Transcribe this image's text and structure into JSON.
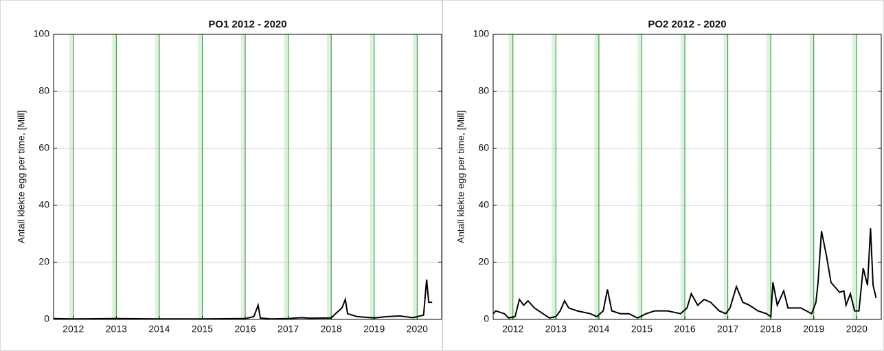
{
  "chart_data": [
    {
      "type": "line",
      "title": "PO1 2012 - 2020",
      "y_label": "Antall klekte egg per time, [Mill]",
      "xlim": [
        2011.54,
        2020.57
      ],
      "ylim": [
        0,
        100
      ],
      "xticks": [
        2012,
        2013,
        2014,
        2015,
        2016,
        2017,
        2018,
        2019,
        2020
      ],
      "yticks": [
        0,
        20,
        40,
        60,
        80,
        100
      ],
      "grid": true,
      "color": "#000000",
      "band_color": "#d9f5d9",
      "shaded_bands": [
        [
          2011.9,
          2012
        ],
        [
          2012.9,
          2013
        ],
        [
          2013.9,
          2014
        ],
        [
          2014.9,
          2015
        ],
        [
          2015.9,
          2016
        ],
        [
          2016.9,
          2017
        ],
        [
          2017.9,
          2018
        ],
        [
          2018.9,
          2019
        ],
        [
          2019.9,
          2020
        ]
      ],
      "x": [
        2011.54,
        2012,
        2013,
        2014,
        2015,
        2016,
        2016.2,
        2016.3,
        2016.35,
        2016.6,
        2017,
        2017.3,
        2017.5,
        2018,
        2018.1,
        2018.25,
        2018.33,
        2018.38,
        2018.6,
        2019,
        2019.3,
        2019.6,
        2019.9,
        2020,
        2020.15,
        2020.22,
        2020.27,
        2020.35
      ],
      "values": [
        0.3,
        0.2,
        0.3,
        0.2,
        0.2,
        0.3,
        1,
        5,
        0.5,
        0.2,
        0.3,
        0.6,
        0.4,
        0.5,
        2,
        4,
        7,
        2,
        1,
        0.5,
        1,
        1.2,
        0.6,
        1,
        1.5,
        14,
        6,
        6
      ]
    },
    {
      "type": "line",
      "title": "PO2 2012 - 2020",
      "y_label": "Antall klekte egg per time, [Mill]",
      "xlim": [
        2011.54,
        2020.57
      ],
      "ylim": [
        0,
        100
      ],
      "xticks": [
        2012,
        2013,
        2014,
        2015,
        2016,
        2017,
        2018,
        2019,
        2020
      ],
      "yticks": [
        0,
        20,
        40,
        60,
        80,
        100
      ],
      "grid": true,
      "color": "#000000",
      "band_color": "#d9f5d9",
      "shaded_bands": [
        [
          2011.9,
          2012
        ],
        [
          2012.9,
          2013
        ],
        [
          2013.9,
          2014
        ],
        [
          2014.9,
          2015
        ],
        [
          2015.9,
          2016
        ],
        [
          2016.9,
          2017
        ],
        [
          2017.9,
          2018
        ],
        [
          2018.9,
          2019
        ],
        [
          2019.9,
          2020
        ]
      ],
      "x": [
        2011.54,
        2011.6,
        2011.8,
        2011.9,
        2012.05,
        2012.15,
        2012.25,
        2012.35,
        2012.5,
        2012.7,
        2012.85,
        2013,
        2013.1,
        2013.2,
        2013.3,
        2013.5,
        2013.8,
        2013.95,
        2014.1,
        2014.2,
        2014.3,
        2014.5,
        2014.7,
        2014.9,
        2015.1,
        2015.3,
        2015.6,
        2015.9,
        2016.05,
        2016.15,
        2016.3,
        2016.45,
        2016.6,
        2016.8,
        2016.95,
        2017.05,
        2017.2,
        2017.35,
        2017.5,
        2017.7,
        2017.9,
        2018,
        2018.05,
        2018.15,
        2018.3,
        2018.4,
        2018.7,
        2018.95,
        2019.05,
        2019.1,
        2019.18,
        2019.3,
        2019.4,
        2019.6,
        2019.7,
        2019.75,
        2019.85,
        2019.95,
        2020.05,
        2020.15,
        2020.25,
        2020.32,
        2020.38,
        2020.45
      ],
      "values": [
        2,
        3,
        2,
        0.5,
        1,
        7,
        5,
        6.5,
        4,
        2,
        0.5,
        1,
        3,
        6.5,
        4,
        3,
        2,
        1,
        3,
        10.5,
        3,
        2,
        2,
        0.5,
        2,
        3,
        3,
        2,
        4,
        9,
        5,
        7,
        6,
        3,
        2,
        4,
        11.5,
        6,
        5,
        3,
        2,
        1,
        13,
        5,
        10,
        4,
        4,
        2,
        6,
        13,
        31,
        22,
        13,
        9.5,
        10,
        5,
        9,
        3,
        3,
        18,
        12,
        32,
        12,
        7.5
      ]
    }
  ]
}
